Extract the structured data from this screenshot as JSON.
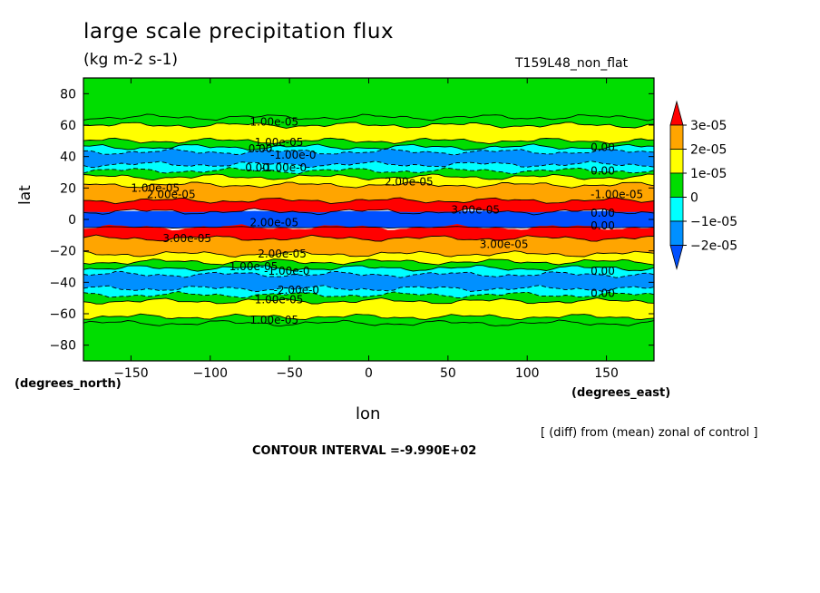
{
  "header": {
    "title": "large scale precipitation flux",
    "units": "(kg m-2 s-1)",
    "run": "T159L48_non_flat"
  },
  "footer": {
    "note": "[ (diff) from (mean) zonal of control ]",
    "interval": "CONTOUR INTERVAL =-9.990E+02"
  },
  "chart_data": {
    "type": "heatmap",
    "xlabel": "lon",
    "ylabel": "lat",
    "x_unit": "(degrees_east)",
    "y_unit": "(degrees_north)",
    "xlim": [
      -180,
      180
    ],
    "ylim": [
      -90,
      90
    ],
    "x_ticks": [
      -150,
      -100,
      -50,
      0,
      50,
      100,
      150
    ],
    "y_ticks": [
      80,
      60,
      40,
      20,
      0,
      -20,
      -40,
      -60,
      -80
    ],
    "colorbar": {
      "levels": [
        "3e-05",
        "2e-05",
        "1e-05",
        "0",
        "-1e-05",
        "-2e-05"
      ],
      "level_values": [
        3e-05,
        2e-05,
        1e-05,
        0,
        -1e-05,
        -2e-05
      ],
      "colors": [
        "#ff0000",
        "#ffa500",
        "#ffff00",
        "#00dd00",
        "#00ffff",
        "#0090ff",
        "#0050ff"
      ]
    },
    "zonal_bands": [
      {
        "lat_from": 90,
        "lat_to": 65,
        "value": 0
      },
      {
        "lat_from": 65,
        "lat_to": 60,
        "value": 5e-06
      },
      {
        "lat_from": 60,
        "lat_to": 50,
        "value": 1.2e-05
      },
      {
        "lat_from": 50,
        "lat_to": 46,
        "value": 4e-06
      },
      {
        "lat_from": 46,
        "lat_to": 43,
        "value": -6e-06
      },
      {
        "lat_from": 43,
        "lat_to": 35,
        "value": -1.3e-05
      },
      {
        "lat_from": 35,
        "lat_to": 31,
        "value": -5e-06
      },
      {
        "lat_from": 31,
        "lat_to": 27,
        "value": 5e-06
      },
      {
        "lat_from": 27,
        "lat_to": 22,
        "value": 1.5e-05
      },
      {
        "lat_from": 22,
        "lat_to": 12,
        "value": 2.4e-05
      },
      {
        "lat_from": 12,
        "lat_to": 5,
        "value": 3.3e-05
      },
      {
        "lat_from": 5,
        "lat_to": -5,
        "value": -2.3e-05
      },
      {
        "lat_from": -5,
        "lat_to": -12,
        "value": 3.3e-05
      },
      {
        "lat_from": -12,
        "lat_to": -22,
        "value": 2.4e-05
      },
      {
        "lat_from": -22,
        "lat_to": -27,
        "value": 1.5e-05
      },
      {
        "lat_from": -27,
        "lat_to": -31,
        "value": 5e-06
      },
      {
        "lat_from": -31,
        "lat_to": -35,
        "value": -5e-06
      },
      {
        "lat_from": -35,
        "lat_to": -44,
        "value": -1.3e-05
      },
      {
        "lat_from": -44,
        "lat_to": -48,
        "value": -5e-06
      },
      {
        "lat_from": -48,
        "lat_to": -52,
        "value": 4e-06
      },
      {
        "lat_from": -52,
        "lat_to": -62,
        "value": 1.2e-05
      },
      {
        "lat_from": -62,
        "lat_to": -66,
        "value": 4e-06
      },
      {
        "lat_from": -66,
        "lat_to": -90,
        "value": 0
      }
    ],
    "contour_labels": [
      {
        "text": "1.00e-05",
        "lon": -75,
        "lat": 62
      },
      {
        "text": "1.00e-05",
        "lon": -72,
        "lat": 49
      },
      {
        "text": "0.00",
        "lon": -76,
        "lat": 45
      },
      {
        "text": "-1.00e-0",
        "lon": -62,
        "lat": 41
      },
      {
        "text": "0.00",
        "lon": -78,
        "lat": 33
      },
      {
        "text": "-1.00e-0",
        "lon": -68,
        "lat": 33
      },
      {
        "text": "0.00",
        "lon": 140,
        "lat": 46
      },
      {
        "text": "0.00",
        "lon": 140,
        "lat": 31
      },
      {
        "text": "2.00e-05",
        "lon": 10,
        "lat": 24
      },
      {
        "text": "1.00e-05",
        "lon": -150,
        "lat": 20
      },
      {
        "text": "2.00e-05",
        "lon": -140,
        "lat": 16
      },
      {
        "text": "-1.00e-05",
        "lon": 140,
        "lat": 16
      },
      {
        "text": "3.00e-05",
        "lon": 52,
        "lat": 6
      },
      {
        "text": "0.00",
        "lon": 140,
        "lat": 4
      },
      {
        "text": "2.00e-05",
        "lon": -75,
        "lat": -2
      },
      {
        "text": "0.00",
        "lon": 140,
        "lat": -4
      },
      {
        "text": "3.00e-05",
        "lon": -130,
        "lat": -12
      },
      {
        "text": "3.00e-05",
        "lon": 70,
        "lat": -16
      },
      {
        "text": "2.00e-05",
        "lon": -70,
        "lat": -22
      },
      {
        "text": "1.00e-05",
        "lon": -88,
        "lat": -30
      },
      {
        "text": "-1.00e-0",
        "lon": -66,
        "lat": -33
      },
      {
        "text": "0.00",
        "lon": 140,
        "lat": -33
      },
      {
        "text": "-2.00e-0",
        "lon": -60,
        "lat": -45
      },
      {
        "text": "1.00e-05",
        "lon": -72,
        "lat": -51
      },
      {
        "text": "0.00",
        "lon": 140,
        "lat": -47
      },
      {
        "text": "1.00e-05",
        "lon": -75,
        "lat": -64
      }
    ]
  }
}
